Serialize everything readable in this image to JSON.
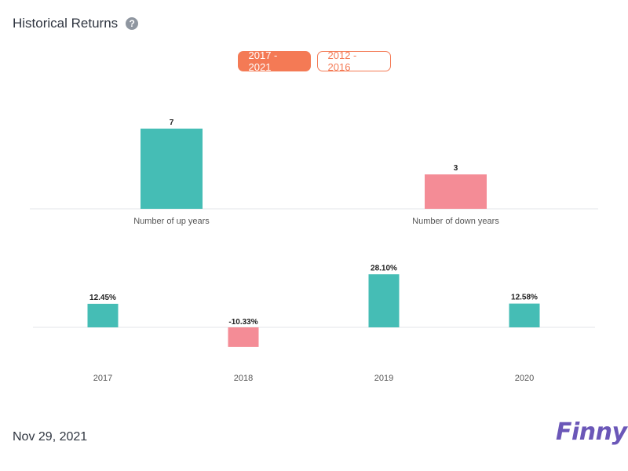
{
  "header": {
    "title": "Historical Returns",
    "help_icon": "?"
  },
  "tabs": [
    {
      "label": "2017 - 2021",
      "active": true
    },
    {
      "label": "2012 - 2016",
      "active": false
    }
  ],
  "chart_data": [
    {
      "type": "bar",
      "categories": [
        "Number of up years",
        "Number of down years"
      ],
      "values": [
        7,
        3
      ],
      "data_labels": [
        "7",
        "3"
      ],
      "colors": [
        "#45bdb5",
        "#f48c96"
      ]
    },
    {
      "type": "bar",
      "categories": [
        "2017",
        "2018",
        "2019",
        "2020"
      ],
      "values": [
        12.45,
        -10.33,
        28.1,
        12.58
      ],
      "data_labels": [
        "12.45%",
        "-10.33%",
        "28.10%",
        "12.58%"
      ],
      "positive_color": "#45bdb5",
      "negative_color": "#f48c96"
    }
  ],
  "footer": {
    "date": "Nov 29, 2021",
    "brand": "Finny"
  }
}
